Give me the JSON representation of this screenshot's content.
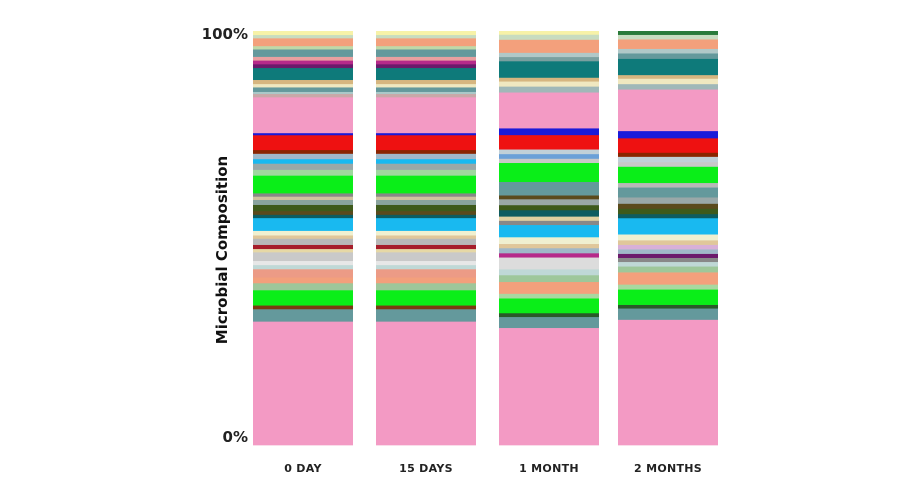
{
  "chart_data": {
    "type": "bar",
    "stacked": true,
    "ylabel": "Microbial Composition",
    "ylim": [
      0,
      100
    ],
    "y_ticks": [
      "0%",
      "100%"
    ],
    "categories": [
      "0 DAY",
      "15 DAYS",
      "1 MONTH",
      "2 MONTHS"
    ],
    "legend": "none",
    "columns": [
      {
        "category": "0 DAY",
        "segments": [
          {
            "value": 30.0,
            "color": "#f39ac4"
          },
          {
            "value": 3.0,
            "color": "#64999c"
          },
          {
            "value": 0.9,
            "color": "#7a3b12"
          },
          {
            "value": 2.3,
            "color": "#0aee18"
          },
          {
            "value": 1.4,
            "color": "#0aee18"
          },
          {
            "value": 1.7,
            "color": "#9ec79a"
          },
          {
            "value": 1.4,
            "color": "#f3a07c"
          },
          {
            "value": 2.0,
            "color": "#ec9b86"
          },
          {
            "value": 1.0,
            "color": "#bfd8d6"
          },
          {
            "value": 1.0,
            "color": "#e7e7e7"
          },
          {
            "value": 2.1,
            "color": "#c9c9c9"
          },
          {
            "value": 0.8,
            "color": "#e6d8a6"
          },
          {
            "value": 1.0,
            "color": "#a61d2a"
          },
          {
            "value": 1.5,
            "color": "#b8b8b8"
          },
          {
            "value": 0.8,
            "color": "#e0c79a"
          },
          {
            "value": 1.1,
            "color": "#f0f0d0"
          },
          {
            "value": 3.1,
            "color": "#19b9f0"
          },
          {
            "value": 0.8,
            "color": "#0e5c60"
          },
          {
            "value": 0.9,
            "color": "#5b4a1c"
          },
          {
            "value": 1.5,
            "color": "#3e5a1b"
          },
          {
            "value": 1.2,
            "color": "#8aa49e"
          },
          {
            "value": 0.8,
            "color": "#d0c2a0"
          },
          {
            "value": 0.8,
            "color": "#888888"
          },
          {
            "value": 4.3,
            "color": "#0aee18"
          },
          {
            "value": 1.4,
            "color": "#9ed89e"
          },
          {
            "value": 1.5,
            "color": "#9aa8a8"
          },
          {
            "value": 1.1,
            "color": "#19b9f0"
          },
          {
            "value": 1.3,
            "color": "#a0b8c8"
          },
          {
            "value": 0.9,
            "color": "#8a2500"
          },
          {
            "value": 3.6,
            "color": "#ee1111"
          },
          {
            "value": 0.5,
            "color": "#1a1ad9"
          },
          {
            "value": 8.7,
            "color": "#f39ac4"
          },
          {
            "value": 0.8,
            "color": "#c8a8a8"
          },
          {
            "value": 0.5,
            "color": "#aac8c8"
          },
          {
            "value": 1.1,
            "color": "#64999c"
          },
          {
            "value": 0.8,
            "color": "#f0e8c0"
          },
          {
            "value": 1.0,
            "color": "#d6b680"
          },
          {
            "value": 2.9,
            "color": "#0e7a7a"
          },
          {
            "value": 0.9,
            "color": "#6b1a6b"
          },
          {
            "value": 0.9,
            "color": "#b62a8a"
          },
          {
            "value": 0.9,
            "color": "#e9a0a0"
          },
          {
            "value": 1.8,
            "color": "#64999c"
          },
          {
            "value": 0.8,
            "color": "#bfd8a8"
          },
          {
            "value": 1.9,
            "color": "#f3a07c"
          },
          {
            "value": 0.8,
            "color": "#c8dcc0"
          },
          {
            "value": 0.9,
            "color": "#f7f2a8"
          }
        ]
      },
      {
        "category": "15 DAYS",
        "segments": [
          {
            "value": 30.0,
            "color": "#f39ac4"
          },
          {
            "value": 3.0,
            "color": "#64999c"
          },
          {
            "value": 0.9,
            "color": "#7a3b12"
          },
          {
            "value": 2.3,
            "color": "#0aee18"
          },
          {
            "value": 1.4,
            "color": "#0aee18"
          },
          {
            "value": 1.7,
            "color": "#9ec79a"
          },
          {
            "value": 1.4,
            "color": "#f3a07c"
          },
          {
            "value": 2.0,
            "color": "#ec9b86"
          },
          {
            "value": 1.0,
            "color": "#bfd8d6"
          },
          {
            "value": 1.0,
            "color": "#e7e7e7"
          },
          {
            "value": 2.1,
            "color": "#c9c9c9"
          },
          {
            "value": 0.8,
            "color": "#e6d8a6"
          },
          {
            "value": 1.0,
            "color": "#a61d2a"
          },
          {
            "value": 1.5,
            "color": "#b8b8b8"
          },
          {
            "value": 0.8,
            "color": "#e0c79a"
          },
          {
            "value": 1.1,
            "color": "#f0f0d0"
          },
          {
            "value": 3.1,
            "color": "#19b9f0"
          },
          {
            "value": 0.8,
            "color": "#0e5c60"
          },
          {
            "value": 0.9,
            "color": "#5b4a1c"
          },
          {
            "value": 1.5,
            "color": "#3e5a1b"
          },
          {
            "value": 1.2,
            "color": "#8aa49e"
          },
          {
            "value": 0.8,
            "color": "#d0c2a0"
          },
          {
            "value": 0.8,
            "color": "#888888"
          },
          {
            "value": 4.3,
            "color": "#0aee18"
          },
          {
            "value": 1.4,
            "color": "#9ed89e"
          },
          {
            "value": 1.5,
            "color": "#9aa8a8"
          },
          {
            "value": 1.1,
            "color": "#19b9f0"
          },
          {
            "value": 1.3,
            "color": "#a0b8c8"
          },
          {
            "value": 0.9,
            "color": "#8a2500"
          },
          {
            "value": 3.6,
            "color": "#ee1111"
          },
          {
            "value": 0.5,
            "color": "#1a1ad9"
          },
          {
            "value": 8.7,
            "color": "#f39ac4"
          },
          {
            "value": 0.8,
            "color": "#c8a8a8"
          },
          {
            "value": 0.5,
            "color": "#aac8c8"
          },
          {
            "value": 1.1,
            "color": "#64999c"
          },
          {
            "value": 0.8,
            "color": "#f0e8c0"
          },
          {
            "value": 1.0,
            "color": "#d6b680"
          },
          {
            "value": 2.9,
            "color": "#0e7a7a"
          },
          {
            "value": 0.9,
            "color": "#6b1a6b"
          },
          {
            "value": 0.9,
            "color": "#b62a8a"
          },
          {
            "value": 0.9,
            "color": "#e9a0a0"
          },
          {
            "value": 1.8,
            "color": "#64999c"
          },
          {
            "value": 0.8,
            "color": "#bfd8a8"
          },
          {
            "value": 1.9,
            "color": "#f3a07c"
          },
          {
            "value": 0.8,
            "color": "#c8dcc0"
          },
          {
            "value": 0.9,
            "color": "#f7f2a8"
          }
        ]
      },
      {
        "category": "1 MONTH",
        "segments": [
          {
            "value": 27.8,
            "color": "#f39ac4"
          },
          {
            "value": 2.6,
            "color": "#64999c"
          },
          {
            "value": 0.9,
            "color": "#2a5a2a"
          },
          {
            "value": 3.5,
            "color": "#0aee18"
          },
          {
            "value": 1.1,
            "color": "#a8d8a0"
          },
          {
            "value": 2.8,
            "color": "#f3a07c"
          },
          {
            "value": 1.6,
            "color": "#9ec79a"
          },
          {
            "value": 1.4,
            "color": "#bfd8d6"
          },
          {
            "value": 2.8,
            "color": "#dcdcdc"
          },
          {
            "value": 1.0,
            "color": "#b62a8a"
          },
          {
            "value": 1.2,
            "color": "#a0b8c8"
          },
          {
            "value": 1.0,
            "color": "#e0c79a"
          },
          {
            "value": 1.6,
            "color": "#f0f0d0"
          },
          {
            "value": 2.9,
            "color": "#19b9f0"
          },
          {
            "value": 1.0,
            "color": "#888888"
          },
          {
            "value": 1.0,
            "color": "#e0d0a0"
          },
          {
            "value": 1.5,
            "color": "#0e5c60"
          },
          {
            "value": 1.2,
            "color": "#3e5a1b"
          },
          {
            "value": 1.4,
            "color": "#9aa8a8"
          },
          {
            "value": 0.9,
            "color": "#5b4a1c"
          },
          {
            "value": 3.2,
            "color": "#64999c"
          },
          {
            "value": 4.5,
            "color": "#0aee18"
          },
          {
            "value": 1.0,
            "color": "#c8c8c8"
          },
          {
            "value": 1.1,
            "color": "#6aa0d8"
          },
          {
            "value": 1.1,
            "color": "#c0d0d8"
          },
          {
            "value": 3.4,
            "color": "#ee1111"
          },
          {
            "value": 1.6,
            "color": "#1a1ad9"
          },
          {
            "value": 8.5,
            "color": "#f39ac4"
          },
          {
            "value": 1.4,
            "color": "#a0b8b8"
          },
          {
            "value": 1.2,
            "color": "#f0e8c0"
          },
          {
            "value": 0.9,
            "color": "#d6b680"
          },
          {
            "value": 3.9,
            "color": "#0e7a7a"
          },
          {
            "value": 1.0,
            "color": "#7aa0a0"
          },
          {
            "value": 1.0,
            "color": "#b0c8c8"
          },
          {
            "value": 3.1,
            "color": "#f3a07c"
          },
          {
            "value": 1.2,
            "color": "#c8dcc0"
          },
          {
            "value": 0.8,
            "color": "#f7f2a8"
          }
        ]
      },
      {
        "category": "2 MONTHS",
        "segments": [
          {
            "value": 27.8,
            "color": "#f39ac4"
          },
          {
            "value": 2.5,
            "color": "#64999c"
          },
          {
            "value": 0.8,
            "color": "#2a5a2a"
          },
          {
            "value": 3.4,
            "color": "#0aee18"
          },
          {
            "value": 1.1,
            "color": "#a8d8a0"
          },
          {
            "value": 2.7,
            "color": "#f3a07c"
          },
          {
            "value": 1.3,
            "color": "#9ec79a"
          },
          {
            "value": 1.0,
            "color": "#bfd8d6"
          },
          {
            "value": 0.9,
            "color": "#888888"
          },
          {
            "value": 0.9,
            "color": "#6b1a6b"
          },
          {
            "value": 1.0,
            "color": "#a0b8c8"
          },
          {
            "value": 1.0,
            "color": "#d8b0d8"
          },
          {
            "value": 1.0,
            "color": "#e0c79a"
          },
          {
            "value": 1.3,
            "color": "#f0f0d0"
          },
          {
            "value": 3.6,
            "color": "#19b9f0"
          },
          {
            "value": 0.9,
            "color": "#0e5c60"
          },
          {
            "value": 1.2,
            "color": "#3e5a1b"
          },
          {
            "value": 1.1,
            "color": "#5b4a1c"
          },
          {
            "value": 1.4,
            "color": "#9aa8a8"
          },
          {
            "value": 2.2,
            "color": "#64999c"
          },
          {
            "value": 1.0,
            "color": "#b8b8b8"
          },
          {
            "value": 3.6,
            "color": "#0aee18"
          },
          {
            "value": 1.0,
            "color": "#c8c8c8"
          },
          {
            "value": 1.2,
            "color": "#c0d0d8"
          },
          {
            "value": 0.9,
            "color": "#8a2500"
          },
          {
            "value": 3.2,
            "color": "#ee1111"
          },
          {
            "value": 1.6,
            "color": "#1a1ad9"
          },
          {
            "value": 9.2,
            "color": "#f39ac4"
          },
          {
            "value": 1.2,
            "color": "#a0b8b8"
          },
          {
            "value": 1.2,
            "color": "#f0e8c0"
          },
          {
            "value": 0.8,
            "color": "#d6b680"
          },
          {
            "value": 3.6,
            "color": "#0e7a7a"
          },
          {
            "value": 1.2,
            "color": "#64999c"
          },
          {
            "value": 1.0,
            "color": "#b0c8c8"
          },
          {
            "value": 2.1,
            "color": "#f3a07c"
          },
          {
            "value": 1.0,
            "color": "#c8dcc0"
          },
          {
            "value": 0.8,
            "color": "#2a7a3a"
          }
        ]
      }
    ]
  }
}
